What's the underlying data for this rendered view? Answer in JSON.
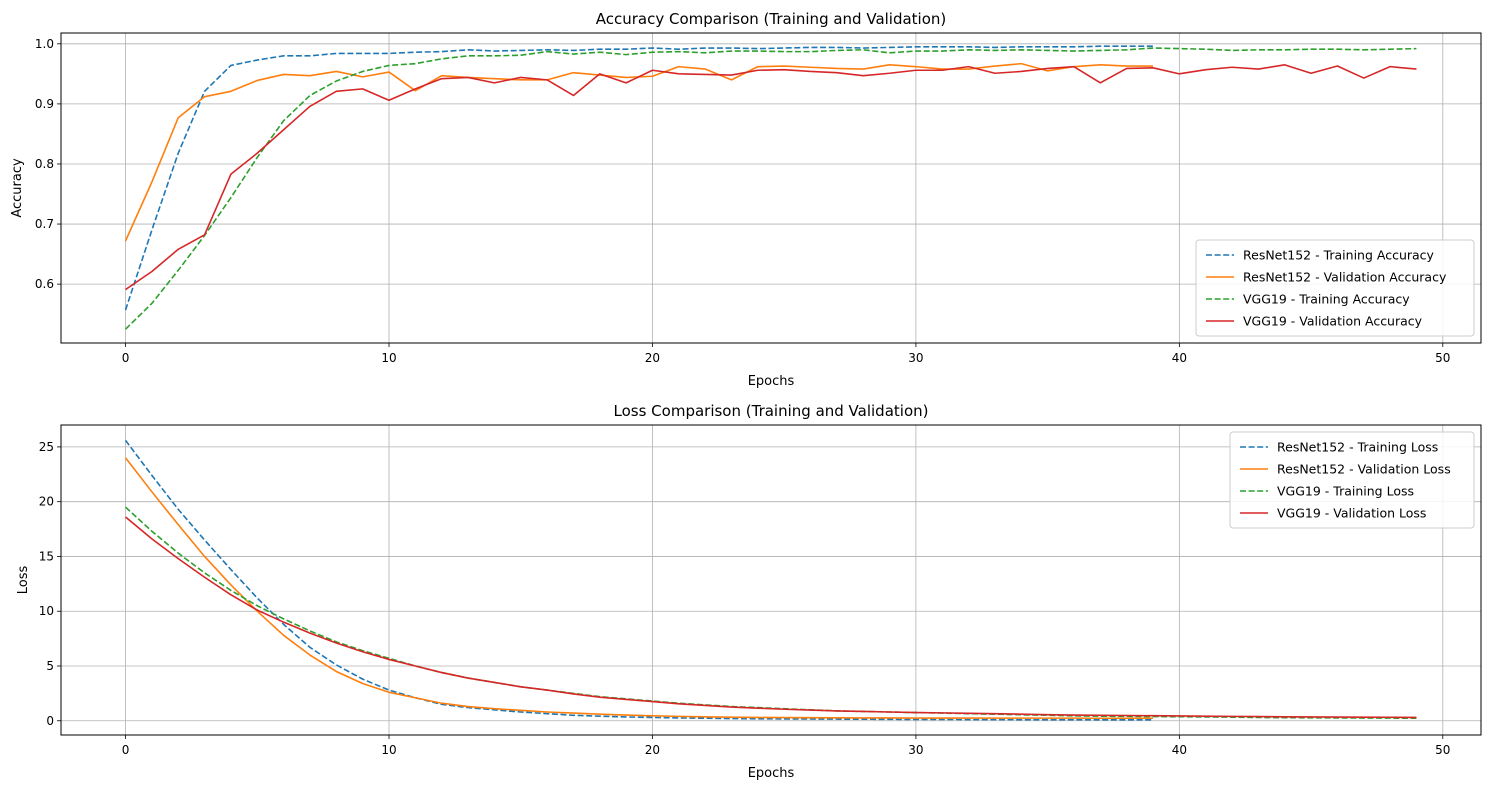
{
  "chart_data": [
    {
      "type": "line",
      "title": "Accuracy Comparison (Training and Validation)",
      "xlabel": "Epochs",
      "ylabel": "Accuracy",
      "xlim": [
        -2.45,
        51.45
      ],
      "ylim": [
        0.502,
        1.018
      ],
      "xticks": [
        0,
        10,
        20,
        30,
        40,
        50
      ],
      "xtick_labels": [
        "0",
        "10",
        "20",
        "30",
        "40",
        "50"
      ],
      "yticks": [
        0.6,
        0.7,
        0.8,
        0.9,
        1.0
      ],
      "ytick_labels": [
        "0.6",
        "0.7",
        "0.8",
        "0.9",
        "1.0"
      ],
      "grid": true,
      "legend_position": "lower-right",
      "series": [
        {
          "name": "ResNet152 - Training Accuracy",
          "color": "#1f77b4",
          "dash": "dashed",
          "x": [
            0,
            1,
            2,
            3,
            4,
            5,
            6,
            7,
            8,
            9,
            10,
            11,
            12,
            13,
            14,
            15,
            16,
            17,
            18,
            19,
            20,
            21,
            22,
            23,
            24,
            25,
            26,
            27,
            28,
            29,
            30,
            31,
            32,
            33,
            34,
            35,
            36,
            37,
            38,
            39
          ],
          "values": [
            0.557,
            0.69,
            0.818,
            0.921,
            0.964,
            0.973,
            0.98,
            0.98,
            0.984,
            0.984,
            0.984,
            0.986,
            0.987,
            0.99,
            0.988,
            0.989,
            0.99,
            0.989,
            0.991,
            0.991,
            0.993,
            0.991,
            0.993,
            0.993,
            0.992,
            0.993,
            0.994,
            0.994,
            0.993,
            0.994,
            0.995,
            0.995,
            0.995,
            0.994,
            0.995,
            0.995,
            0.995,
            0.996,
            0.996,
            0.996
          ]
        },
        {
          "name": "ResNet152 - Validation Accuracy",
          "color": "#ff7f0e",
          "dash": "solid",
          "x": [
            0,
            1,
            2,
            3,
            4,
            5,
            6,
            7,
            8,
            9,
            10,
            11,
            12,
            13,
            14,
            15,
            16,
            17,
            18,
            19,
            20,
            21,
            22,
            23,
            24,
            25,
            26,
            27,
            28,
            29,
            30,
            31,
            32,
            33,
            34,
            35,
            36,
            37,
            38,
            39
          ],
          "values": [
            0.672,
            0.77,
            0.877,
            0.912,
            0.921,
            0.939,
            0.949,
            0.947,
            0.954,
            0.945,
            0.953,
            0.922,
            0.947,
            0.944,
            0.942,
            0.94,
            0.94,
            0.952,
            0.948,
            0.944,
            0.946,
            0.962,
            0.958,
            0.94,
            0.962,
            0.963,
            0.961,
            0.959,
            0.958,
            0.965,
            0.962,
            0.958,
            0.958,
            0.963,
            0.967,
            0.955,
            0.962,
            0.965,
            0.963,
            0.963
          ]
        },
        {
          "name": "VGG19 - Training Accuracy",
          "color": "#2ca02c",
          "dash": "dashed",
          "x": [
            0,
            1,
            2,
            3,
            4,
            5,
            6,
            7,
            8,
            9,
            10,
            11,
            12,
            13,
            14,
            15,
            16,
            17,
            18,
            19,
            20,
            21,
            22,
            23,
            24,
            25,
            26,
            27,
            28,
            29,
            30,
            31,
            32,
            33,
            34,
            35,
            36,
            37,
            38,
            39,
            40,
            41,
            42,
            43,
            44,
            45,
            46,
            47,
            48,
            49
          ],
          "values": [
            0.525,
            0.568,
            0.623,
            0.681,
            0.744,
            0.811,
            0.872,
            0.914,
            0.938,
            0.954,
            0.964,
            0.967,
            0.975,
            0.98,
            0.98,
            0.981,
            0.987,
            0.983,
            0.986,
            0.982,
            0.986,
            0.987,
            0.985,
            0.988,
            0.988,
            0.987,
            0.987,
            0.989,
            0.99,
            0.985,
            0.988,
            0.988,
            0.99,
            0.989,
            0.99,
            0.989,
            0.988,
            0.989,
            0.99,
            0.993,
            0.992,
            0.991,
            0.989,
            0.99,
            0.99,
            0.991,
            0.991,
            0.99,
            0.991,
            0.992
          ]
        },
        {
          "name": "VGG19 - Validation Accuracy",
          "color": "#d62728",
          "dash": "solid",
          "x": [
            0,
            1,
            2,
            3,
            4,
            5,
            6,
            7,
            8,
            9,
            10,
            11,
            12,
            13,
            14,
            15,
            16,
            17,
            18,
            19,
            20,
            21,
            22,
            23,
            24,
            25,
            26,
            27,
            28,
            29,
            30,
            31,
            32,
            33,
            34,
            35,
            36,
            37,
            38,
            39,
            40,
            41,
            42,
            43,
            44,
            45,
            46,
            47,
            48,
            49
          ],
          "values": [
            0.591,
            0.621,
            0.658,
            0.682,
            0.783,
            0.818,
            0.857,
            0.896,
            0.921,
            0.925,
            0.906,
            0.925,
            0.942,
            0.944,
            0.935,
            0.944,
            0.94,
            0.914,
            0.95,
            0.935,
            0.956,
            0.95,
            0.949,
            0.948,
            0.956,
            0.957,
            0.954,
            0.952,
            0.947,
            0.951,
            0.956,
            0.956,
            0.962,
            0.951,
            0.954,
            0.959,
            0.962,
            0.935,
            0.959,
            0.96,
            0.95,
            0.957,
            0.961,
            0.958,
            0.965,
            0.951,
            0.963,
            0.943,
            0.962,
            0.958
          ]
        }
      ]
    },
    {
      "type": "line",
      "title": "Loss Comparison (Training and Validation)",
      "xlabel": "Epochs",
      "ylabel": "Loss",
      "xlim": [
        -2.45,
        51.45
      ],
      "ylim": [
        -1.3,
        27.0
      ],
      "xticks": [
        0,
        10,
        20,
        30,
        40,
        50
      ],
      "xtick_labels": [
        "0",
        "10",
        "20",
        "30",
        "40",
        "50"
      ],
      "yticks": [
        0,
        5,
        10,
        15,
        20,
        25
      ],
      "ytick_labels": [
        "0",
        "5",
        "10",
        "15",
        "20",
        "25"
      ],
      "grid": true,
      "legend_position": "upper-right",
      "series": [
        {
          "name": "ResNet152 - Training Loss",
          "color": "#1f77b4",
          "dash": "dashed",
          "x": [
            0,
            1,
            2,
            3,
            4,
            5,
            6,
            7,
            8,
            9,
            10,
            11,
            12,
            13,
            14,
            15,
            16,
            17,
            18,
            19,
            20,
            21,
            22,
            23,
            24,
            25,
            26,
            27,
            28,
            29,
            30,
            31,
            32,
            33,
            34,
            35,
            36,
            37,
            38,
            39
          ],
          "values": [
            25.6,
            22.4,
            19.3,
            16.5,
            13.8,
            11.2,
            8.8,
            6.7,
            5.1,
            3.8,
            2.8,
            2.1,
            1.5,
            1.2,
            1.0,
            0.8,
            0.65,
            0.5,
            0.42,
            0.35,
            0.3,
            0.26,
            0.23,
            0.2,
            0.18,
            0.17,
            0.16,
            0.15,
            0.14,
            0.13,
            0.12,
            0.12,
            0.11,
            0.11,
            0.1,
            0.1,
            0.1,
            0.09,
            0.09,
            0.09
          ]
        },
        {
          "name": "ResNet152 - Validation Loss",
          "color": "#ff7f0e",
          "dash": "solid",
          "x": [
            0,
            1,
            2,
            3,
            4,
            5,
            6,
            7,
            8,
            9,
            10,
            11,
            12,
            13,
            14,
            15,
            16,
            17,
            18,
            19,
            20,
            21,
            22,
            23,
            24,
            25,
            26,
            27,
            28,
            29,
            30,
            31,
            32,
            33,
            34,
            35,
            36,
            37,
            38,
            39
          ],
          "values": [
            24.0,
            20.9,
            17.9,
            15.0,
            12.4,
            10.0,
            7.8,
            6.0,
            4.5,
            3.4,
            2.6,
            2.1,
            1.6,
            1.3,
            1.1,
            0.95,
            0.8,
            0.7,
            0.6,
            0.52,
            0.45,
            0.4,
            0.36,
            0.33,
            0.3,
            0.29,
            0.28,
            0.27,
            0.26,
            0.26,
            0.25,
            0.25,
            0.25,
            0.24,
            0.24,
            0.24,
            0.24,
            0.23,
            0.23,
            0.23
          ]
        },
        {
          "name": "VGG19 - Training Loss",
          "color": "#2ca02c",
          "dash": "dashed",
          "x": [
            0,
            1,
            2,
            3,
            4,
            5,
            6,
            7,
            8,
            9,
            10,
            11,
            12,
            13,
            14,
            15,
            16,
            17,
            18,
            19,
            20,
            21,
            22,
            23,
            24,
            25,
            26,
            27,
            28,
            29,
            30,
            31,
            32,
            33,
            34,
            35,
            36,
            37,
            38,
            39,
            40,
            41,
            42,
            43,
            44,
            45,
            46,
            47,
            48,
            49
          ],
          "values": [
            19.5,
            17.3,
            15.3,
            13.5,
            11.9,
            10.5,
            9.3,
            8.2,
            7.2,
            6.4,
            5.7,
            5.0,
            4.4,
            3.9,
            3.5,
            3.1,
            2.8,
            2.5,
            2.2,
            2.0,
            1.8,
            1.6,
            1.45,
            1.3,
            1.2,
            1.1,
            1.0,
            0.9,
            0.85,
            0.8,
            0.75,
            0.7,
            0.65,
            0.6,
            0.55,
            0.5,
            0.45,
            0.42,
            0.4,
            0.38,
            0.37,
            0.35,
            0.33,
            0.3,
            0.28,
            0.27,
            0.26,
            0.25,
            0.24,
            0.23
          ]
        },
        {
          "name": "VGG19 - Validation Loss",
          "color": "#d62728",
          "dash": "solid",
          "x": [
            0,
            1,
            2,
            3,
            4,
            5,
            6,
            7,
            8,
            9,
            10,
            11,
            12,
            13,
            14,
            15,
            16,
            17,
            18,
            19,
            20,
            21,
            22,
            23,
            24,
            25,
            26,
            27,
            28,
            29,
            30,
            31,
            32,
            33,
            34,
            35,
            36,
            37,
            38,
            39,
            40,
            41,
            42,
            43,
            44,
            45,
            46,
            47,
            48,
            49
          ],
          "values": [
            18.6,
            16.6,
            14.8,
            13.1,
            11.5,
            10.1,
            9.0,
            8.0,
            7.1,
            6.3,
            5.6,
            5.0,
            4.4,
            3.9,
            3.5,
            3.1,
            2.8,
            2.45,
            2.15,
            1.95,
            1.75,
            1.55,
            1.4,
            1.25,
            1.15,
            1.05,
            0.98,
            0.9,
            0.85,
            0.8,
            0.75,
            0.72,
            0.68,
            0.65,
            0.6,
            0.55,
            0.52,
            0.5,
            0.48,
            0.46,
            0.44,
            0.42,
            0.4,
            0.38,
            0.36,
            0.35,
            0.34,
            0.33,
            0.32,
            0.3
          ]
        }
      ]
    }
  ]
}
